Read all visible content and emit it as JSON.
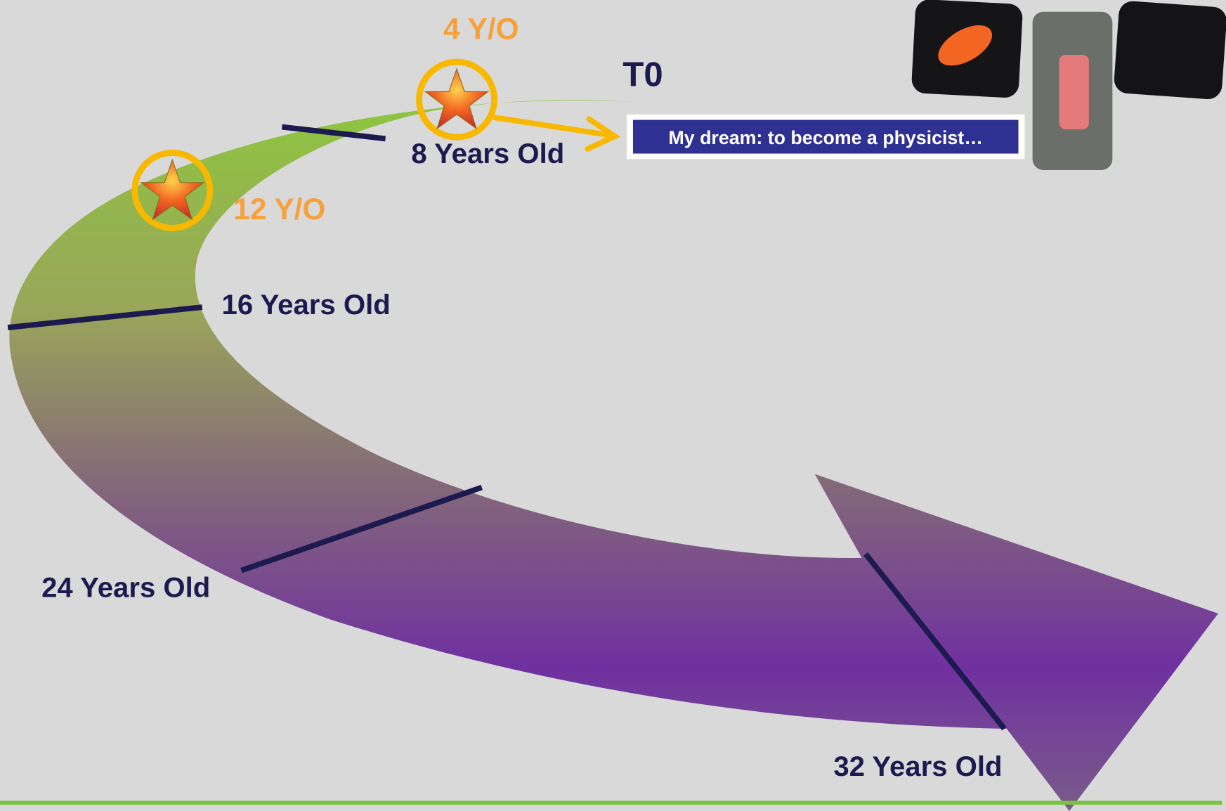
{
  "timeline": {
    "marker_top": "T0",
    "star_1": "4 Y/O",
    "age_8": "8 Years Old",
    "star_2": "12 Y/O",
    "age_16": "16 Years Old",
    "age_24": "24 Years Old",
    "age_32": "32 Years Old",
    "dream": "My dream: to become a physicist…"
  }
}
